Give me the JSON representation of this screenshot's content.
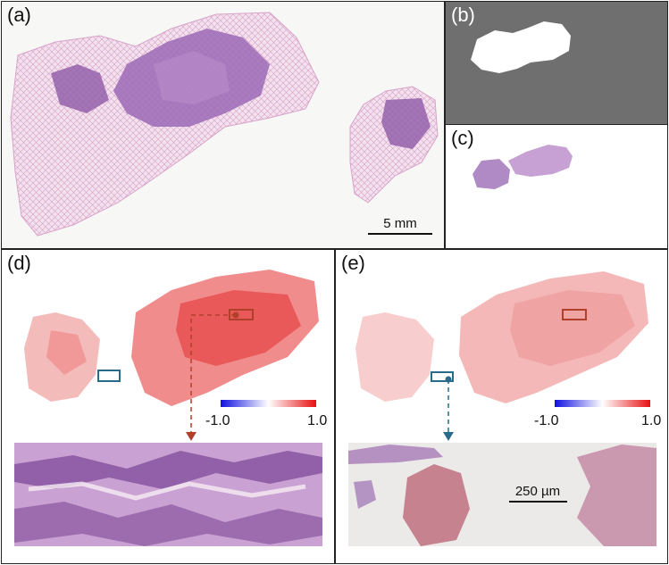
{
  "panels": {
    "a": {
      "label": "(a)",
      "scalebar": "5 mm"
    },
    "b": {
      "label": "(b)"
    },
    "c": {
      "label": "(c)"
    },
    "d": {
      "label": "(d)",
      "colorbar": {
        "min": "-1.0",
        "max": "1.0",
        "min_color": "#1010e0",
        "mid_color": "#ffffff",
        "max_color": "#e81010"
      }
    },
    "e": {
      "label": "(e)",
      "colorbar": {
        "min": "-1.0",
        "max": "1.0",
        "min_color": "#1010e0",
        "mid_color": "#ffffff",
        "max_color": "#e81010"
      },
      "scalebar": "250 µm"
    }
  },
  "colors": {
    "tissue_dark": "#8a5aa8",
    "tissue_light": "#e4b8d6",
    "mask_background": "#707070",
    "roi_red": "#b0402a",
    "roi_blue": "#2a6a8a"
  }
}
